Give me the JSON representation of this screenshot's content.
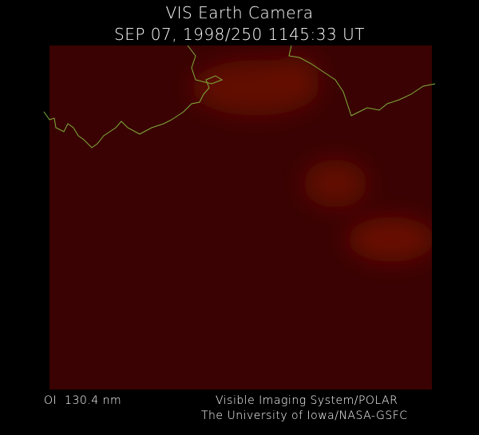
{
  "header": {
    "title": "VIS Earth Camera",
    "subtitle": "SEP 07, 1998/250 1145:33 UT"
  },
  "footer": {
    "filter": "OI  130.4 nm",
    "instrument": "Visible Imaging System/POLAR",
    "institution": "The University of Iowa/NASA-GSFC"
  }
}
